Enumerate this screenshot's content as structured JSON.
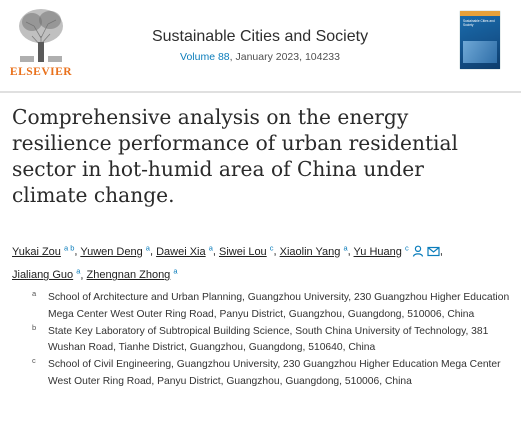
{
  "header": {
    "publisher_logo_text": "ELSEVIER",
    "journal_title": "Sustainable Cities and Society",
    "volume_link": "Volume 88",
    "citation_rest": ", January 2023, 104233",
    "cover_text": "Sustainable Cities and Society"
  },
  "article": {
    "title": "Comprehensive analysis on the energy resilience performance of urban residential sector in hot-humid area of China under climate change."
  },
  "authors": [
    {
      "name": "Yukai Zou",
      "sup": "a b"
    },
    {
      "name": "Yuwen Deng",
      "sup": "a"
    },
    {
      "name": "Dawei Xia",
      "sup": "a"
    },
    {
      "name": "Siwei Lou",
      "sup": "c"
    },
    {
      "name": "Xiaolin Yang",
      "sup": "a"
    },
    {
      "name": "Yu Huang",
      "sup": "c"
    },
    {
      "name": "Jialiang Guo",
      "sup": "a"
    },
    {
      "name": "Zhengnan Zhong",
      "sup": "a"
    }
  ],
  "icons": {
    "person": "person-icon",
    "email": "email-icon"
  },
  "affiliations": [
    {
      "letter": "a",
      "text": "School of Architecture and Urban Planning, Guangzhou University, 230 Guangzhou Higher Education Mega Center West Outer Ring Road, Panyu District, Guangzhou, Guangdong, 510006, China"
    },
    {
      "letter": "b",
      "text": "State Key Laboratory of Subtropical Building Science, South China University of Technology, 381 Wushan Road, Tianhe District, Guangzhou, Guangdong, 510640, China"
    },
    {
      "letter": "c",
      "text": "School of Civil Engineering, Guangzhou University, 230 Guangzhou Higher Education Mega Center West Outer Ring Road, Panyu District, Guangzhou, Guangdong, 510006, China"
    }
  ],
  "colors": {
    "link": "#0c7dbb",
    "elsevier_orange": "#e9711c"
  }
}
